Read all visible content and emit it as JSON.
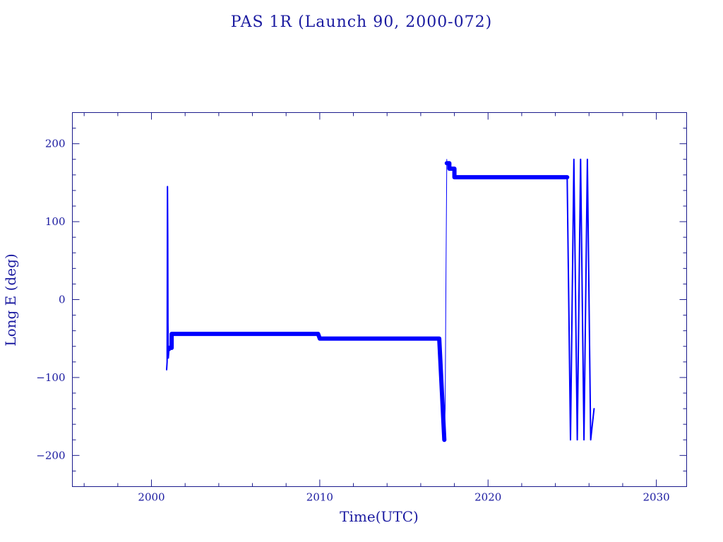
{
  "chart_data": {
    "type": "line",
    "title": "PAS 1R (Launch 90, 2000-072)",
    "xlabel": "Time(UTC)",
    "ylabel": "Long E (deg)",
    "xlim": [
      1995.3,
      2031.8
    ],
    "ylim": [
      -240,
      240
    ],
    "x_ticks": [
      2000,
      2010,
      2020,
      2030
    ],
    "y_ticks": [
      200,
      100,
      0,
      -100,
      -200
    ],
    "x_tick_labels": [
      "2000",
      "2010",
      "2020",
      "2030"
    ],
    "y_tick_labels": [
      "200",
      "100",
      "0",
      "−100",
      "−200"
    ],
    "x_minor_step": 2,
    "y_minor_step": 20,
    "grid": false,
    "legend": "none",
    "color": "#0000ff",
    "series": [
      {
        "x": [
          2000.9,
          2000.93,
          2000.95,
          2000.97,
          2000.98,
          2001.0,
          2001.05,
          2001.1,
          2001.15,
          2001.2
        ],
        "y": [
          -90,
          -80,
          145,
          80,
          -30,
          -75,
          -60,
          -65,
          -55,
          -62
        ]
      },
      {
        "x": [
          2001.2,
          2001.2,
          2009.9,
          2010.0,
          2017.1,
          2017.4
        ],
        "y": [
          -62,
          -44,
          -44,
          -50,
          -50,
          -180
        ]
      },
      {
        "x": [
          2017.4,
          2017.45,
          2017.5,
          2017.55
        ],
        "y": [
          -180,
          -140,
          40,
          180
        ]
      },
      {
        "x": [
          2017.55,
          2017.7,
          2017.7,
          2018.0,
          2018.0,
          2024.7
        ],
        "y": [
          175,
          175,
          168,
          168,
          157,
          157
        ]
      },
      {
        "x": [
          2024.7,
          2024.9,
          2025.1,
          2025.3,
          2025.5,
          2025.7,
          2025.9,
          2026.1,
          2026.3
        ],
        "y": [
          157,
          -180,
          180,
          -180,
          180,
          -180,
          180,
          -180,
          -140
        ]
      }
    ]
  }
}
